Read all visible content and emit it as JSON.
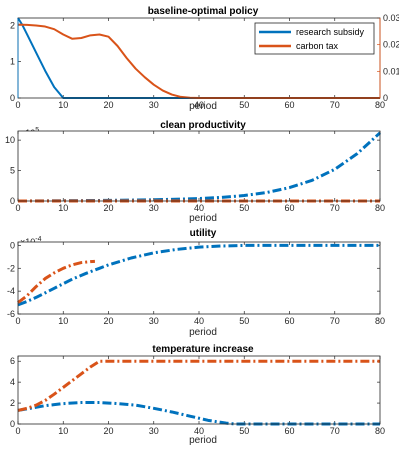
{
  "chart_data": [
    {
      "type": "line",
      "title": "baseline-optimal policy",
      "xlabel": "period",
      "ylabel": "",
      "xlim": [
        0,
        80
      ],
      "xticks": [
        0,
        10,
        20,
        30,
        40,
        50,
        60,
        70,
        80
      ],
      "ylim": [
        0,
        2.2
      ],
      "yticks": [
        0,
        1,
        2
      ],
      "y2lim": [
        0,
        0.03
      ],
      "y2ticks": [
        0,
        0.01,
        0.02,
        0.03
      ],
      "legend_position": "top-right",
      "series": [
        {
          "name": "research subsidy",
          "axis": "left",
          "color": "#0072BD",
          "style": "solid",
          "x": [
            0,
            1,
            2,
            4,
            6,
            8,
            10,
            80
          ],
          "y": [
            2.2,
            2.0,
            1.75,
            1.25,
            0.75,
            0.3,
            0,
            0
          ]
        },
        {
          "name": "carbon tax",
          "axis": "right",
          "color": "#D95319",
          "style": "solid",
          "x": [
            0,
            2,
            4,
            6,
            8,
            10,
            12,
            14,
            16,
            18,
            20,
            22,
            24,
            26,
            28,
            30,
            32,
            34,
            36,
            38,
            40,
            80
          ],
          "y": [
            0.0275,
            0.0274,
            0.0272,
            0.0268,
            0.0258,
            0.0238,
            0.0222,
            0.0225,
            0.0235,
            0.0238,
            0.023,
            0.0195,
            0.015,
            0.011,
            0.0078,
            0.005,
            0.0028,
            0.0013,
            0.0004,
            0.0001,
            0,
            0
          ]
        }
      ]
    },
    {
      "type": "line",
      "title": "clean productivity",
      "xlabel": "period",
      "ylabel": "",
      "xlim": [
        0,
        80
      ],
      "xticks": [
        0,
        10,
        20,
        30,
        40,
        50,
        60,
        70,
        80
      ],
      "ylim": [
        0,
        11.5
      ],
      "yticks": [
        0,
        5,
        10
      ],
      "y_exponent": "×10",
      "y_exponent_power": "5",
      "series": [
        {
          "color": "#0072BD",
          "style": "dash-dot",
          "x": [
            0,
            10,
            20,
            30,
            40,
            45,
            50,
            55,
            60,
            65,
            70,
            75,
            80
          ],
          "y": [
            0,
            0.05,
            0.1,
            0.2,
            0.4,
            0.6,
            0.9,
            1.4,
            2.2,
            3.4,
            5.2,
            7.8,
            11.2
          ]
        },
        {
          "color": "#D95319",
          "style": "dash-dot",
          "x": [
            0,
            80
          ],
          "y": [
            0,
            0
          ]
        }
      ]
    },
    {
      "type": "line",
      "title": "utility",
      "xlabel": "period",
      "ylabel": "",
      "xlim": [
        0,
        80
      ],
      "xticks": [
        0,
        10,
        20,
        30,
        40,
        50,
        60,
        70,
        80
      ],
      "ylim": [
        -6,
        0.3
      ],
      "yticks": [
        -6,
        -4,
        -2,
        0
      ],
      "y_exponent": "×10",
      "y_exponent_power": "-4",
      "series": [
        {
          "color": "#0072BD",
          "style": "dash-dot",
          "x": [
            0,
            2,
            4,
            6,
            8,
            10,
            12,
            15,
            18,
            20,
            25,
            30,
            35,
            40,
            45,
            50,
            60,
            70,
            80
          ],
          "y": [
            -5.2,
            -4.9,
            -4.55,
            -4.15,
            -3.75,
            -3.35,
            -2.95,
            -2.45,
            -2.0,
            -1.7,
            -1.1,
            -0.65,
            -0.35,
            -0.15,
            -0.05,
            0,
            0,
            0,
            0
          ]
        },
        {
          "color": "#D95319",
          "style": "dash-dot",
          "x": [
            0,
            2,
            4,
            6,
            8,
            10,
            12,
            14,
            16,
            17
          ],
          "y": [
            -5.0,
            -4.4,
            -3.6,
            -2.9,
            -2.4,
            -2.0,
            -1.7,
            -1.5,
            -1.42,
            -1.4
          ]
        }
      ]
    },
    {
      "type": "line",
      "title": "temperature increase",
      "xlabel": "period",
      "ylabel": "",
      "xlim": [
        0,
        80
      ],
      "xticks": [
        0,
        10,
        20,
        30,
        40,
        50,
        60,
        70,
        80
      ],
      "ylim": [
        0,
        6.5
      ],
      "yticks": [
        0,
        2,
        4,
        6
      ],
      "series": [
        {
          "color": "#0072BD",
          "style": "dash-dot",
          "x": [
            0,
            2,
            4,
            6,
            8,
            10,
            14,
            18,
            22,
            26,
            30,
            34,
            38,
            42,
            46,
            48,
            50,
            60,
            70,
            80
          ],
          "y": [
            1.3,
            1.45,
            1.6,
            1.75,
            1.85,
            1.95,
            2.05,
            2.05,
            1.95,
            1.8,
            1.5,
            1.15,
            0.75,
            0.35,
            0.08,
            0,
            0,
            0,
            0,
            0
          ]
        },
        {
          "color": "#D95319",
          "style": "dash-dot",
          "x": [
            0,
            2,
            4,
            6,
            8,
            10,
            12,
            14,
            16,
            18,
            80
          ],
          "y": [
            1.3,
            1.5,
            1.8,
            2.25,
            2.85,
            3.5,
            4.15,
            4.8,
            5.45,
            6.0,
            6.0
          ]
        }
      ]
    }
  ]
}
